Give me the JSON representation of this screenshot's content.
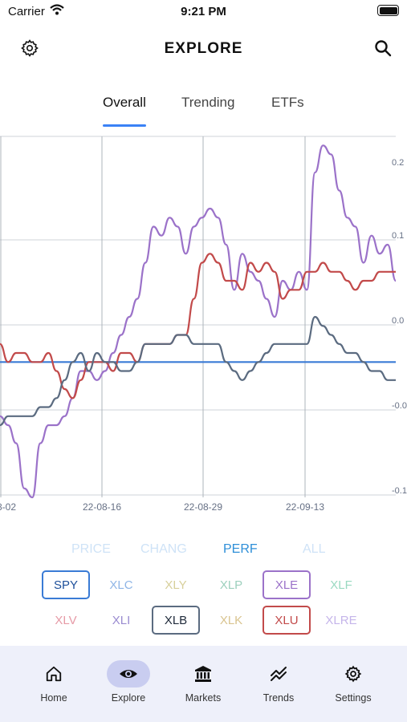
{
  "status_bar": {
    "carrier": "Carrier",
    "time": "9:21 PM"
  },
  "header": {
    "title": "EXPLORE",
    "left_icon": "gear-icon",
    "right_icon": "search-icon"
  },
  "tabs": [
    {
      "label": "Overall",
      "active": true
    },
    {
      "label": "Trending",
      "active": false
    },
    {
      "label": "ETFs",
      "active": false
    }
  ],
  "chart_data": {
    "type": "line",
    "x_tick_labels": [
      "8-02",
      "22-08-16",
      "22-08-29",
      "22-09-13"
    ],
    "y_tick_labels": [
      "0.2",
      "0.1",
      "0.0",
      "-0.0",
      "-0.1"
    ],
    "grid": true,
    "series": [
      {
        "name": "SPY",
        "color": "#3a7bd5",
        "values": [
          -0.05,
          -0.05,
          -0.05,
          -0.05,
          -0.05,
          -0.05,
          -0.05,
          -0.05,
          -0.05,
          -0.05,
          -0.05,
          -0.05,
          -0.05,
          -0.05,
          -0.05,
          -0.05,
          -0.05,
          -0.05,
          -0.05,
          -0.05,
          -0.05,
          -0.05,
          -0.05,
          -0.05,
          -0.05,
          -0.05,
          -0.05,
          -0.05,
          -0.05,
          -0.05,
          -0.05,
          -0.05,
          -0.05,
          -0.05,
          -0.05,
          -0.05,
          -0.05,
          -0.05,
          -0.05,
          -0.05,
          -0.05,
          -0.05,
          -0.05,
          -0.05,
          -0.05,
          -0.05,
          -0.05,
          -0.05,
          -0.05,
          -0.05
        ]
      },
      {
        "name": "XLE",
        "color": "#9b72c9",
        "values": [
          -0.11,
          -0.12,
          -0.14,
          -0.19,
          -0.2,
          -0.14,
          -0.12,
          -0.12,
          -0.11,
          -0.09,
          -0.06,
          -0.06,
          -0.07,
          -0.06,
          -0.04,
          -0.02,
          0.0,
          0.02,
          0.06,
          0.1,
          0.09,
          0.11,
          0.1,
          0.07,
          0.1,
          0.11,
          0.12,
          0.11,
          0.08,
          0.03,
          0.07,
          0.05,
          0.04,
          0.02,
          0.0,
          0.04,
          0.03,
          0.05,
          0.03,
          0.16,
          0.19,
          0.18,
          0.14,
          0.11,
          0.1,
          0.06,
          0.09,
          0.07,
          0.08,
          0.04
        ]
      },
      {
        "name": "XLU",
        "color": "#c24a4a",
        "values": [
          -0.03,
          -0.05,
          -0.04,
          -0.04,
          -0.05,
          -0.05,
          -0.04,
          -0.06,
          -0.08,
          -0.09,
          -0.07,
          -0.05,
          -0.05,
          -0.05,
          -0.06,
          -0.04,
          -0.04,
          -0.05,
          -0.03,
          -0.03,
          -0.03,
          -0.03,
          -0.02,
          -0.02,
          0.02,
          0.06,
          0.07,
          0.06,
          0.04,
          0.04,
          0.03,
          0.06,
          0.05,
          0.06,
          0.05,
          0.02,
          0.03,
          0.03,
          0.05,
          0.05,
          0.06,
          0.05,
          0.05,
          0.04,
          0.03,
          0.04,
          0.04,
          0.05,
          0.05,
          0.05
        ]
      },
      {
        "name": "XLB",
        "color": "#5b6b80",
        "values": [
          -0.12,
          -0.11,
          -0.11,
          -0.11,
          -0.11,
          -0.1,
          -0.1,
          -0.09,
          -0.07,
          -0.05,
          -0.04,
          -0.06,
          -0.04,
          -0.05,
          -0.05,
          -0.06,
          -0.06,
          -0.05,
          -0.03,
          -0.03,
          -0.03,
          -0.03,
          -0.02,
          -0.02,
          -0.03,
          -0.03,
          -0.03,
          -0.03,
          -0.05,
          -0.06,
          -0.07,
          -0.06,
          -0.05,
          -0.04,
          -0.03,
          -0.03,
          -0.03,
          -0.03,
          -0.03,
          0.0,
          -0.01,
          -0.02,
          -0.03,
          -0.04,
          -0.04,
          -0.05,
          -0.06,
          -0.06,
          -0.07,
          -0.07
        ]
      }
    ]
  },
  "modes": [
    {
      "label": "PRICE",
      "active": false
    },
    {
      "label": "CHANG",
      "active": false
    },
    {
      "label": "PERF",
      "active": true
    },
    {
      "label": "ALL",
      "active": false
    }
  ],
  "tickers": [
    {
      "symbol": "SPY",
      "color": "#3a7bd5",
      "selected": true
    },
    {
      "symbol": "XLC",
      "color": "#8fb5e6",
      "selected": false
    },
    {
      "symbol": "XLY",
      "color": "#d7cf9a",
      "selected": false
    },
    {
      "symbol": "XLP",
      "color": "#9dd0bd",
      "selected": false
    },
    {
      "symbol": "XLE",
      "color": "#9b72c9",
      "selected": true
    },
    {
      "symbol": "XLF",
      "color": "#9ad9c1",
      "selected": false
    },
    {
      "symbol": "XLV",
      "color": "#e69aa6",
      "selected": false
    },
    {
      "symbol": "XLI",
      "color": "#9a8bd0",
      "selected": false
    },
    {
      "symbol": "XLB",
      "color": "#5b6b80",
      "selected": true
    },
    {
      "symbol": "XLK",
      "color": "#d9c48f",
      "selected": false
    },
    {
      "symbol": "XLU",
      "color": "#c24a4a",
      "selected": true
    },
    {
      "symbol": "XLRE",
      "color": "#c5b5ea",
      "selected": false
    }
  ],
  "nav": [
    {
      "label": "Home",
      "icon": "home-icon",
      "active": false
    },
    {
      "label": "Explore",
      "icon": "eye-icon",
      "active": true
    },
    {
      "label": "Markets",
      "icon": "bank-icon",
      "active": false
    },
    {
      "label": "Trends",
      "icon": "trend-icon",
      "active": false
    },
    {
      "label": "Settings",
      "icon": "gear-icon",
      "active": false
    }
  ]
}
